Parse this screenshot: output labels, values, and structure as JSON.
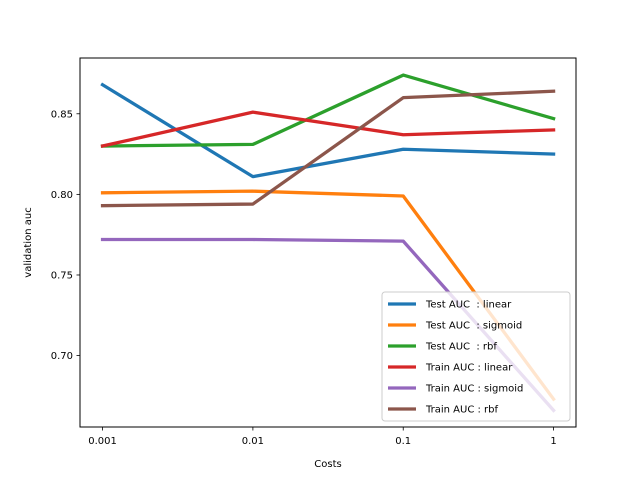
{
  "chart_data": {
    "type": "line",
    "title": "",
    "xlabel": "Costs",
    "ylabel": "validation auc",
    "x_scale": "log",
    "x": [
      0.001,
      0.01,
      0.1,
      1
    ],
    "x_tick_labels": [
      "0.001",
      "0.01",
      "0.1",
      "1"
    ],
    "y_ticks": [
      0.7,
      0.75,
      0.8,
      0.85
    ],
    "y_tick_labels": [
      "0.70",
      "0.75",
      "0.80",
      "0.85"
    ],
    "xlim": [
      0.000708,
      1.41
    ],
    "ylim": [
      0.6557,
      0.8846
    ],
    "grid": false,
    "legend_position": "lower-right",
    "series": [
      {
        "name": "Test AUC  : linear",
        "color": "#1f77b4",
        "values": [
          0.868,
          0.811,
          0.828,
          0.825
        ]
      },
      {
        "name": "Test AUC  : sigmoid",
        "color": "#ff7f0e",
        "values": [
          0.801,
          0.802,
          0.799,
          0.673
        ]
      },
      {
        "name": "Test AUC  : rbf",
        "color": "#2ca02c",
        "values": [
          0.83,
          0.831,
          0.874,
          0.847
        ]
      },
      {
        "name": "Train AUC : linear",
        "color": "#d62728",
        "values": [
          0.83,
          0.851,
          0.837,
          0.84
        ]
      },
      {
        "name": "Train AUC : sigmoid",
        "color": "#9467bd",
        "values": [
          0.772,
          0.772,
          0.771,
          0.666
        ]
      },
      {
        "name": "Train AUC : rbf",
        "color": "#8c564b",
        "values": [
          0.793,
          0.794,
          0.86,
          0.864
        ]
      }
    ]
  }
}
